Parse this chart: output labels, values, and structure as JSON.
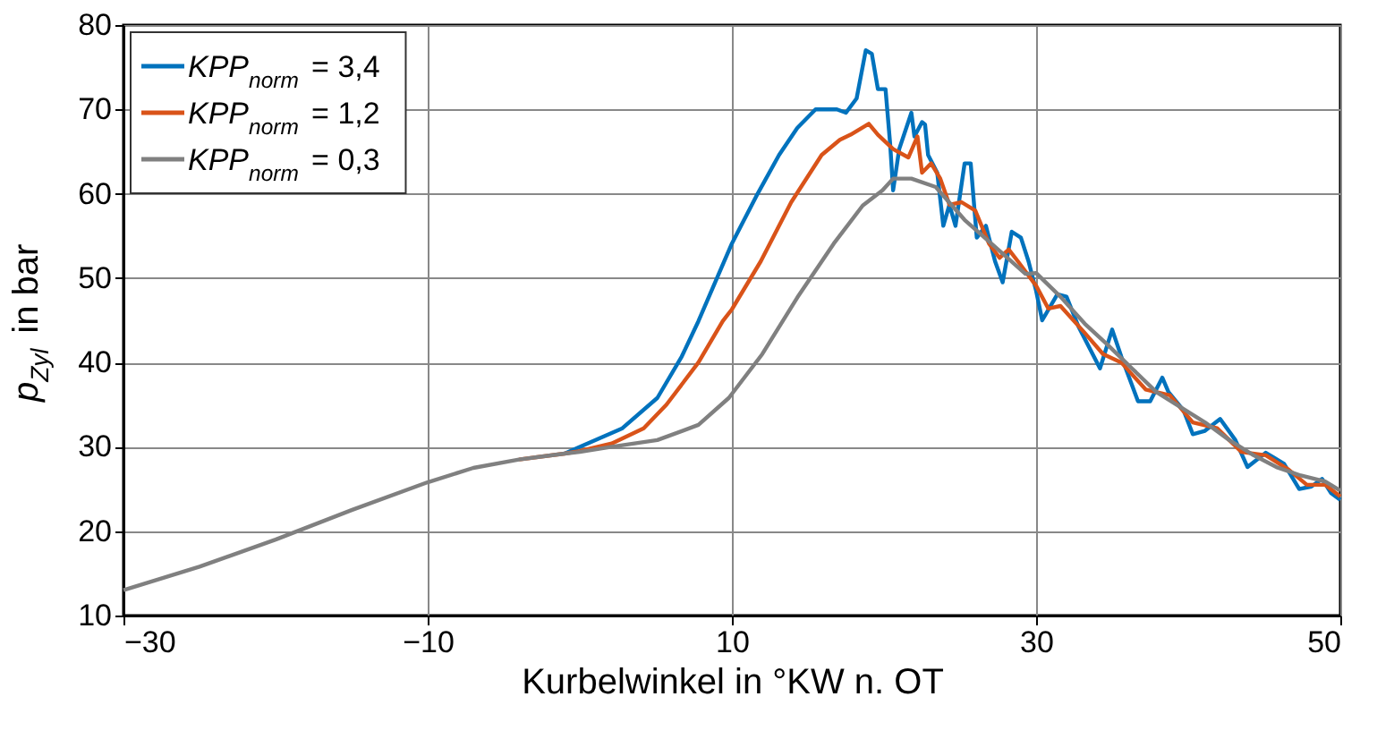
{
  "chart_data": {
    "type": "line",
    "xlabel": "Kurbelwinkel in °KW n. OT",
    "ylabel": "p$_{Zyl}$ in bar",
    "xlim": [
      -30,
      50
    ],
    "ylim": [
      10,
      80
    ],
    "xticks": [
      -30,
      -10,
      10,
      30,
      50
    ],
    "yticks": [
      10,
      20,
      30,
      40,
      50,
      60,
      70,
      80
    ],
    "grid": true,
    "legend": "top left",
    "line_style": "solid",
    "series": [
      {
        "name": "KPP$_{norm}$ = 3,4",
        "color": "#0072bd",
        "x": [
          -1,
          0,
          2.8,
          5.1,
          6.7,
          7.8,
          10,
          11.6,
          13.1,
          14.3,
          15.5,
          16.9,
          17.5,
          18.2,
          18.8,
          19.2,
          19.6,
          20.1,
          20.4,
          20.6,
          21,
          21.8,
          22,
          22.5,
          22.7,
          22.9,
          23.5,
          23.9,
          24.3,
          24.7,
          25.3,
          25.7,
          26.1,
          26.7,
          27.3,
          27.8,
          28.4,
          29,
          29.5,
          30,
          30.4,
          31.4,
          32,
          32.8,
          34.2,
          35,
          35.6,
          36.7,
          37.5,
          38.3,
          38.7,
          39.7,
          40.3,
          41.1,
          42.1,
          43.1,
          43.9,
          45.1,
          46.3,
          47.3,
          48.1,
          48.8,
          49.4,
          50
        ],
        "values": [
          29.2,
          30,
          32.2,
          35.8,
          40.7,
          44.9,
          54.1,
          59.7,
          64.6,
          67.8,
          70,
          70,
          69.6,
          71.3,
          77,
          76.6,
          72.4,
          72.4,
          66,
          60.4,
          65.3,
          69.6,
          66.8,
          68.5,
          68.2,
          64.6,
          62.5,
          56.2,
          58.7,
          56.2,
          63.6,
          63.6,
          54.8,
          56.2,
          52,
          49.5,
          55.5,
          54.8,
          52,
          48.5,
          45,
          48.1,
          47.8,
          44.2,
          39.3,
          43.9,
          40.7,
          35.4,
          35.4,
          38.2,
          36.5,
          34.3,
          31.5,
          31.9,
          33.3,
          30.8,
          27.6,
          29.3,
          28,
          25,
          25.3,
          26.2,
          24.5,
          23.7
        ]
      },
      {
        "name": "KPP$_{norm}$ = 1,2",
        "color": "#d95319",
        "x": [
          -4,
          -1,
          0,
          2.1,
          4.2,
          5.7,
          7.8,
          9.4,
          10,
          11.9,
          13.9,
          15.9,
          17.1,
          17.8,
          19,
          19.6,
          20.6,
          21.6,
          22.2,
          22.5,
          23.1,
          23.7,
          24.3,
          25.1,
          26,
          26.9,
          27.6,
          28.2,
          28.8,
          30,
          30.8,
          31.6,
          33.2,
          34.4,
          35.6,
          37.2,
          38.8,
          40.3,
          41.9,
          43.5,
          45.1,
          46.6,
          47.8,
          49,
          50
        ],
        "values": [
          28.5,
          29.2,
          29.5,
          30.4,
          32.2,
          35,
          40,
          44.9,
          46.3,
          52,
          59,
          64.6,
          66.4,
          67,
          68.3,
          67,
          65.3,
          64.3,
          66.8,
          62.5,
          63.6,
          61.8,
          58.7,
          59,
          58,
          54.1,
          52.4,
          53.4,
          52,
          49.1,
          46.4,
          46.7,
          43.5,
          41,
          40,
          36.8,
          36.1,
          32.9,
          32.2,
          29.4,
          29,
          27.3,
          25.5,
          25.5,
          24.1
        ]
      },
      {
        "name": "KPP$_{norm}$ = 0,3",
        "color": "#808080",
        "x": [
          -30,
          -25,
          -20,
          -15,
          -10,
          -7,
          -4,
          -1,
          0,
          2.1,
          5.1,
          7.8,
          9.8,
          12,
          14.3,
          16.7,
          18.6,
          19.9,
          20.6,
          21.8,
          23.4,
          25.3,
          27.3,
          29.3,
          30,
          31.6,
          33.2,
          34.7,
          36.3,
          37.9,
          39.5,
          41.1,
          42.7,
          44.3,
          45.8,
          47.4,
          49,
          50
        ],
        "values": [
          13,
          15.8,
          19,
          22.5,
          25.8,
          27.5,
          28.5,
          29.2,
          29.4,
          30,
          30.8,
          32.6,
          35.8,
          41,
          47.7,
          54.1,
          58.6,
          60.4,
          61.8,
          61.8,
          60.8,
          56.9,
          53.7,
          50.5,
          50.6,
          47.8,
          44.6,
          42.1,
          39.3,
          36.5,
          34.7,
          32.9,
          30.8,
          29,
          27.6,
          26.6,
          25.9,
          24.8
        ]
      }
    ]
  }
}
